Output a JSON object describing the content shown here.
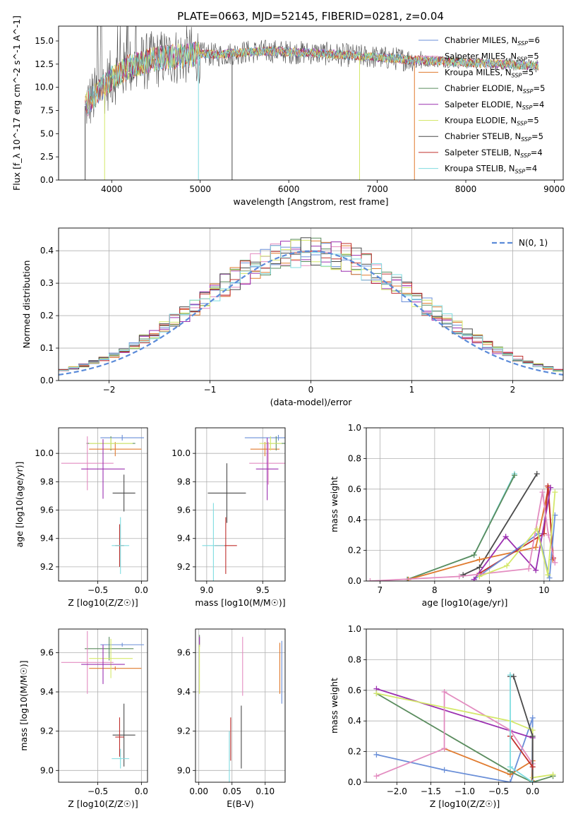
{
  "chart_data": [
    {
      "type": "line",
      "title": "PLATE=0663, MJD=52145, FIBERID=0281, z=0.04",
      "xlabel": "wavelength [Angstrom, rest frame]",
      "ylabel": "Flux [f_λ 10^-17 erg cm^-2 s^-1 A^-1]",
      "xlim": [
        3400,
        9100
      ],
      "ylim": [
        0,
        16.6
      ],
      "xticks": [
        4000,
        5000,
        6000,
        7000,
        8000,
        9000
      ],
      "yticks": [
        0.0,
        2.5,
        5.0,
        7.5,
        10.0,
        12.5,
        15.0
      ],
      "legend_position": "top-right",
      "series": [
        {
          "name": "Chabrier MILES, N_SSP=6",
          "color": "#6a8fd8"
        },
        {
          "name": "Salpeter MILES, N_SSP=5",
          "color": "#e38cc0"
        },
        {
          "name": "Kroupa MILES, N_SSP=5",
          "color": "#e07a2e"
        },
        {
          "name": "Chabrier ELODIE, N_SSP=5",
          "color": "#5a8c5e"
        },
        {
          "name": "Salpeter ELODIE, N_SSP=4",
          "color": "#9b30b0"
        },
        {
          "name": "Kroupa ELODIE, N_SSP=5",
          "color": "#d4e86a"
        },
        {
          "name": "Chabrier STELIB, N_SSP=5",
          "color": "#4a4a4a"
        },
        {
          "name": "Salpeter STELIB, N_SSP=4",
          "color": "#c0302e"
        },
        {
          "name": "Kroupa STELIB, N_SSP=4",
          "color": "#7fdce0"
        }
      ],
      "continuum": {
        "x": [
          3700,
          3850,
          4000,
          4200,
          4400,
          4600,
          4800,
          5000,
          5200,
          5500,
          5800,
          6000,
          6300,
          6600,
          6900,
          7200,
          7500,
          7800,
          8100,
          8400,
          8600,
          8800
        ],
        "y": [
          8.0,
          9.5,
          11.0,
          12.2,
          12.8,
          13.2,
          13.4,
          13.6,
          13.5,
          13.8,
          13.9,
          13.8,
          13.7,
          13.5,
          13.3,
          13.1,
          12.9,
          12.8,
          12.6,
          12.5,
          12.4,
          12.3
        ]
      }
    },
    {
      "type": "line",
      "xlabel": "(data-model)/error",
      "ylabel": "Normed distribution",
      "xlim": [
        -2.5,
        2.5
      ],
      "ylim": [
        0,
        0.47
      ],
      "xticks": [
        -2,
        -1,
        0,
        1,
        2
      ],
      "yticks": [
        0.0,
        0.1,
        0.2,
        0.3,
        0.4
      ],
      "legend": "N(0, 1)",
      "legend_position": "top-right",
      "normal_curve": {
        "mean": 0,
        "sigma": 1,
        "color": "#5b8bd9"
      },
      "histogram_bin_width": 0.1
    },
    {
      "type": "scatter",
      "xlabel": "Z [log10(Z/Z☉)]",
      "ylabel": "age  [log10(age/yr)]",
      "xlim": [
        -0.95,
        0.07
      ],
      "ylim": [
        9.1,
        10.18
      ],
      "xticks": [
        -0.5,
        0.0
      ],
      "yticks": [
        9.2,
        9.4,
        9.6,
        9.8,
        10.0
      ],
      "points": [
        {
          "x": -0.22,
          "y": 10.11,
          "xerr": 0.25,
          "yerr": 0.02,
          "color": "#6a8fd8"
        },
        {
          "x": -0.3,
          "y": 10.03,
          "xerr": 0.3,
          "yerr": 0.05,
          "color": "#e07a2e"
        },
        {
          "x": -0.35,
          "y": 10.07,
          "xerr": 0.28,
          "yerr": 0.05,
          "color": "#5a8c5e"
        },
        {
          "x": -0.35,
          "y": 10.07,
          "xerr": 0.25,
          "yerr": 0.04,
          "color": "#d4e86a"
        },
        {
          "x": -0.62,
          "y": 9.93,
          "xerr": 0.3,
          "yerr": 0.19,
          "color": "#e38cc0"
        },
        {
          "x": -0.44,
          "y": 9.89,
          "xerr": 0.25,
          "yerr": 0.21,
          "color": "#9b30b0"
        },
        {
          "x": -0.2,
          "y": 9.72,
          "xerr": 0.13,
          "yerr": 0.13,
          "color": "#4a4a4a"
        },
        {
          "x": -0.25,
          "y": 9.35,
          "xerr": 0.05,
          "yerr": 0.15,
          "color": "#c0302e"
        },
        {
          "x": -0.24,
          "y": 9.35,
          "xerr": 0.1,
          "yerr": 0.2,
          "color": "#7fdce0"
        }
      ]
    },
    {
      "type": "scatter",
      "xlabel": "mass [log10(M/M☉)]",
      "xlim": [
        8.9,
        9.7
      ],
      "ylim": [
        9.1,
        10.18
      ],
      "xticks": [
        9.0,
        9.5
      ],
      "yticks": [
        9.2,
        9.4,
        9.6,
        9.8,
        10.0
      ],
      "points": [
        {
          "x": 9.64,
          "y": 10.11,
          "xerr": 0.3,
          "yerr": 0.02,
          "color": "#6a8fd8"
        },
        {
          "x": 9.52,
          "y": 10.03,
          "xerr": 0.13,
          "yerr": 0.05,
          "color": "#e07a2e"
        },
        {
          "x": 9.62,
          "y": 10.07,
          "xerr": 0.1,
          "yerr": 0.05,
          "color": "#5a8c5e"
        },
        {
          "x": 9.57,
          "y": 10.07,
          "xerr": 0.1,
          "yerr": 0.05,
          "color": "#d4e86a"
        },
        {
          "x": 9.55,
          "y": 9.93,
          "xerr": 0.17,
          "yerr": 0.15,
          "color": "#e38cc0"
        },
        {
          "x": 9.54,
          "y": 9.89,
          "xerr": 0.1,
          "yerr": 0.22,
          "color": "#9b30b0"
        },
        {
          "x": 9.18,
          "y": 9.72,
          "xerr": 0.17,
          "yerr": 0.21,
          "color": "#4a4a4a"
        },
        {
          "x": 9.17,
          "y": 9.35,
          "xerr": 0.1,
          "yerr": 0.2,
          "color": "#c0302e"
        },
        {
          "x": 9.06,
          "y": 9.35,
          "xerr": 0.1,
          "yerr": 0.3,
          "color": "#7fdce0"
        }
      ]
    },
    {
      "type": "line",
      "xlabel": "age  [log10(age/yr)]",
      "ylabel": "mass weight",
      "xlim": [
        6.75,
        10.35
      ],
      "ylim": [
        0,
        1
      ],
      "xticks": [
        7,
        8,
        9,
        10
      ],
      "yticks": [
        0.0,
        0.2,
        0.4,
        0.6,
        0.8,
        1.0
      ],
      "series": [
        {
          "color": "#7fdce0",
          "x": [
            7.5,
            8.72,
            9.46
          ],
          "y": [
            0.01,
            0.17,
            0.7
          ]
        },
        {
          "color": "#5a8c5e",
          "x": [
            7.5,
            8.72,
            9.46
          ],
          "y": [
            0.01,
            0.17,
            0.69
          ]
        },
        {
          "color": "#4a4a4a",
          "x": [
            8.52,
            8.82,
            9.87
          ],
          "y": [
            0.04,
            0.09,
            0.7
          ]
        },
        {
          "color": "#e07a2e",
          "x": [
            7.52,
            8.82,
            9.85,
            10.08,
            10.16
          ],
          "y": [
            0.01,
            0.14,
            0.22,
            0.61,
            0.14
          ]
        },
        {
          "color": "#c0302e",
          "x": [
            8.82,
            10.0,
            10.07,
            10.17
          ],
          "y": [
            0.05,
            0.31,
            0.62,
            0.15
          ]
        },
        {
          "color": "#6a8fd8",
          "x": [
            8.72,
            9.9,
            10.1,
            10.2
          ],
          "y": [
            0.01,
            0.31,
            0.02,
            0.43
          ]
        },
        {
          "color": "#9b30b0",
          "x": [
            8.72,
            9.3,
            9.85,
            10.12
          ],
          "y": [
            0.01,
            0.29,
            0.07,
            0.61
          ]
        },
        {
          "color": "#e38cc0",
          "x": [
            6.82,
            8.45,
            9.72,
            9.97,
            10.08,
            10.2
          ],
          "y": [
            0.0,
            0.03,
            0.08,
            0.58,
            0.3,
            0.12
          ]
        },
        {
          "color": "#d4e86a",
          "x": [
            8.82,
            9.32,
            9.87,
            10.07,
            10.2
          ],
          "y": [
            0.03,
            0.1,
            0.34,
            0.04,
            0.58
          ]
        }
      ]
    },
    {
      "type": "scatter",
      "xlabel": "Z [log10(Z/Z☉)]",
      "ylabel": "mass [log10(M/M☉)]",
      "xlim": [
        -0.95,
        0.07
      ],
      "ylim": [
        8.94,
        9.72
      ],
      "xticks": [
        -0.5,
        0.0
      ],
      "yticks": [
        9.0,
        9.2,
        9.4,
        9.6
      ],
      "points": [
        {
          "x": -0.22,
          "y": 9.64,
          "xerr": 0.25,
          "yerr": 0.01,
          "color": "#6a8fd8"
        },
        {
          "x": -0.3,
          "y": 9.52,
          "xerr": 0.3,
          "yerr": 0.01,
          "color": "#e07a2e"
        },
        {
          "x": -0.37,
          "y": 9.62,
          "xerr": 0.28,
          "yerr": 0.06,
          "color": "#5a8c5e"
        },
        {
          "x": -0.35,
          "y": 9.57,
          "xerr": 0.25,
          "yerr": 0.1,
          "color": "#d4e86a"
        },
        {
          "x": -0.62,
          "y": 9.55,
          "xerr": 0.3,
          "yerr": 0.16,
          "color": "#e38cc0"
        },
        {
          "x": -0.44,
          "y": 9.54,
          "xerr": 0.25,
          "yerr": 0.1,
          "color": "#9b30b0"
        },
        {
          "x": -0.2,
          "y": 9.18,
          "xerr": 0.13,
          "yerr": 0.16,
          "color": "#4a4a4a"
        },
        {
          "x": -0.25,
          "y": 9.17,
          "xerr": 0.05,
          "yerr": 0.1,
          "color": "#c0302e"
        },
        {
          "x": -0.24,
          "y": 9.06,
          "xerr": 0.1,
          "yerr": 0.05,
          "color": "#7fdce0"
        }
      ]
    },
    {
      "type": "scatter",
      "xlabel": "E(B-V)",
      "xlim": [
        -0.005,
        0.13
      ],
      "ylim": [
        8.94,
        9.72
      ],
      "xticks": [
        0.0,
        0.05,
        0.1
      ],
      "yticks": [
        9.0,
        9.2,
        9.4,
        9.6
      ],
      "points": [
        {
          "x": 0.125,
          "y": 9.5,
          "yerr": 0.16,
          "color": "#6a8fd8"
        },
        {
          "x": 0.122,
          "y": 9.52,
          "yerr": 0.13,
          "color": "#e07a2e"
        },
        {
          "x": 0.001,
          "y": 9.66,
          "yerr": 0.03,
          "color": "#5a8c5e"
        },
        {
          "x": 0.001,
          "y": 9.52,
          "yerr": 0.13,
          "color": "#d4e86a"
        },
        {
          "x": 0.066,
          "y": 9.53,
          "yerr": 0.15,
          "color": "#e38cc0"
        },
        {
          "x": 0.001,
          "y": 9.66,
          "yerr": 0.02,
          "color": "#9b30b0"
        },
        {
          "x": 0.064,
          "y": 9.17,
          "yerr": 0.16,
          "color": "#4a4a4a"
        },
        {
          "x": 0.048,
          "y": 9.16,
          "yerr": 0.11,
          "color": "#c0302e"
        },
        {
          "x": 0.046,
          "y": 9.07,
          "yerr": 0.13,
          "color": "#7fdce0"
        }
      ]
    },
    {
      "type": "line",
      "xlabel": "Z [log10(Z/Z☉)]",
      "ylabel": "mass weight",
      "xlim": [
        -2.45,
        0.45
      ],
      "ylim": [
        0,
        1
      ],
      "xticks": [
        -2.0,
        -1.5,
        -1.0,
        -0.5,
        0.0
      ],
      "yticks": [
        0.0,
        0.2,
        0.4,
        0.6,
        0.8,
        1.0
      ],
      "series": [
        {
          "color": "#6a8fd8",
          "x": [
            -2.3,
            -1.3,
            -0.33,
            0.0,
            -0.01
          ],
          "y": [
            0.18,
            0.08,
            0.0,
            0.42,
            0.0
          ]
        },
        {
          "color": "#e07a2e",
          "x": [
            -1.3,
            -0.33,
            0.0,
            -0.01
          ],
          "y": [
            0.22,
            0.05,
            0.14,
            0.01
          ]
        },
        {
          "color": "#5a8c5e",
          "x": [
            -2.3,
            -0.33,
            0.0,
            0.3
          ],
          "y": [
            0.58,
            0.07,
            0.0,
            0.04
          ]
        },
        {
          "color": "#9b30b0",
          "x": [
            -2.3,
            0.0,
            0.0
          ],
          "y": [
            0.61,
            0.29,
            0.0
          ]
        },
        {
          "color": "#e38cc0",
          "x": [
            -2.3,
            -1.3,
            -1.3,
            -0.33,
            0.0
          ],
          "y": [
            0.04,
            0.22,
            0.59,
            0.34,
            0.12
          ]
        },
        {
          "color": "#d4e86a",
          "x": [
            -2.3,
            -0.33,
            0.0,
            0.0,
            0.3
          ],
          "y": [
            0.58,
            0.4,
            0.34,
            0.03,
            0.05
          ]
        },
        {
          "color": "#4a4a4a",
          "x": [
            -0.33,
            -0.28,
            0.0,
            0.0
          ],
          "y": [
            0.69,
            0.69,
            0.3,
            0.0
          ]
        },
        {
          "color": "#c0302e",
          "x": [
            -0.33,
            -0.33,
            0.0
          ],
          "y": [
            0.3,
            0.3,
            0.1
          ]
        },
        {
          "color": "#7fdce0",
          "x": [
            -0.33,
            -0.33,
            0.0
          ],
          "y": [
            0.7,
            0.1,
            0.0
          ]
        }
      ]
    }
  ]
}
